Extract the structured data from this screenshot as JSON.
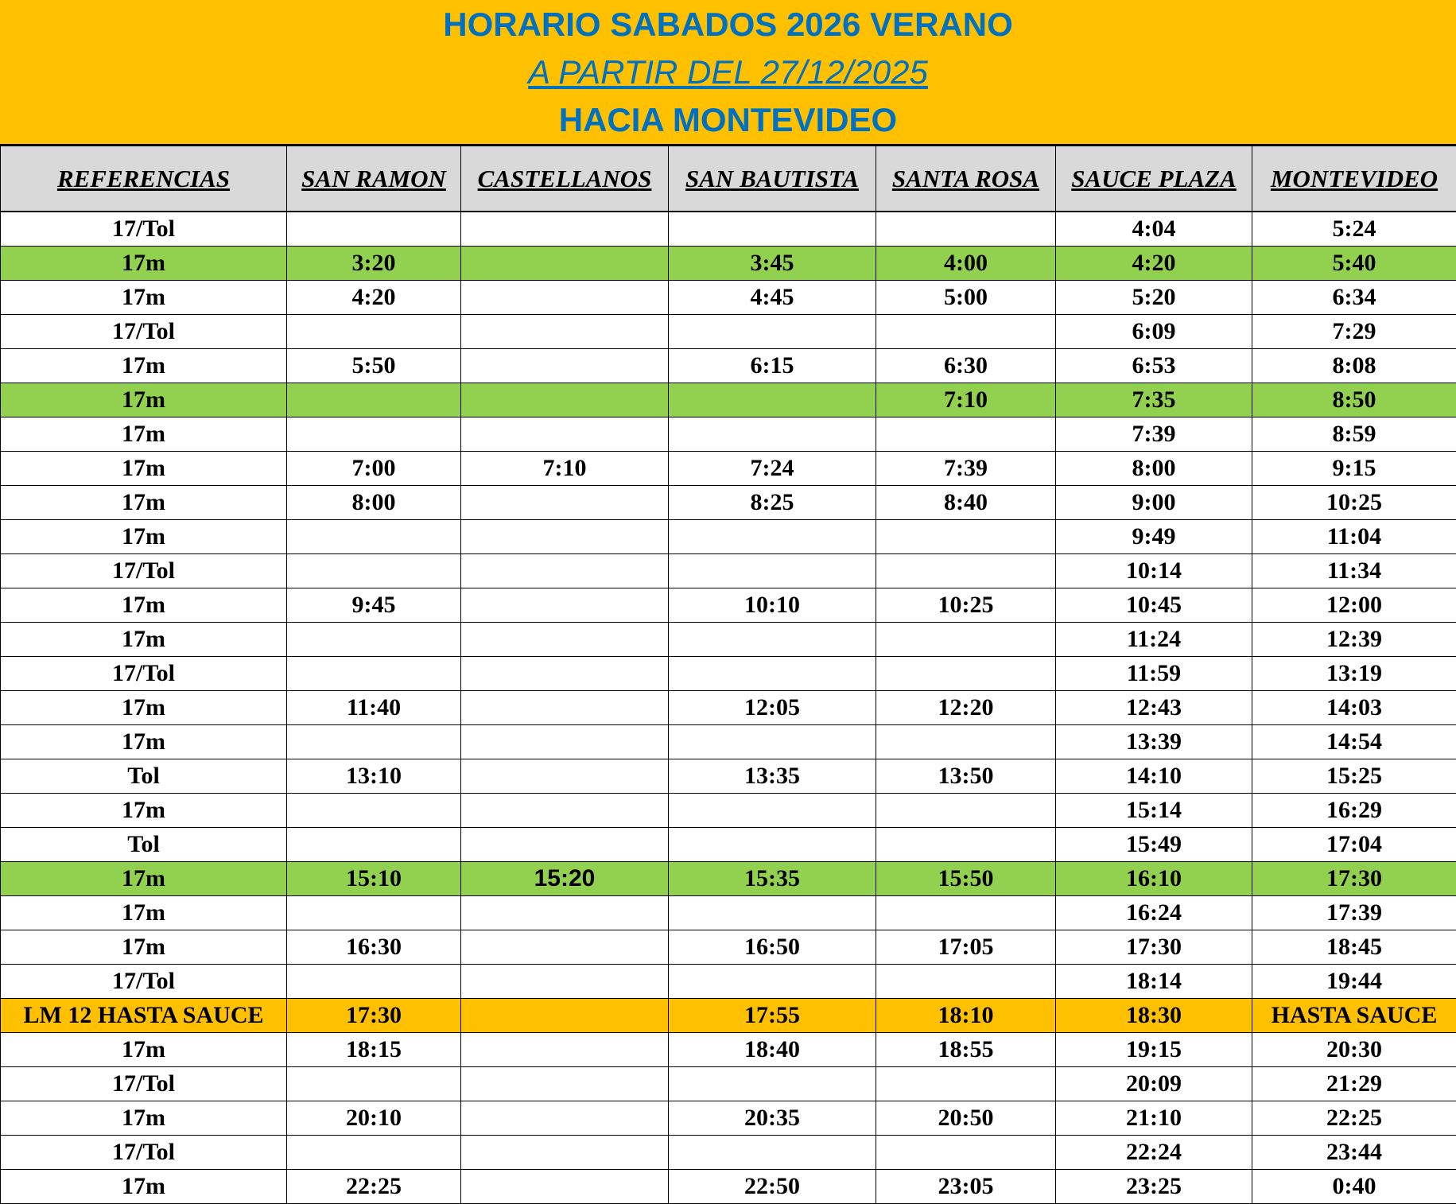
{
  "title": "HORARIO SABADOS 2026 VERANO",
  "subtitle": "A PARTIR DEL 27/12/2025",
  "direction": "HACIA MONTEVIDEO",
  "colors": {
    "banner": "#FFC000",
    "title_text": "#0070C0",
    "header_bg": "#D9D9D9",
    "highlight_green": "#92D050",
    "highlight_orange": "#FFC000"
  },
  "columns": [
    "REFERENCIAS",
    "SAN RAMON",
    "CASTELLANOS",
    "SAN BAUTISTA",
    "SANTA ROSA",
    "SAUCE PLAZA",
    "MONTEVIDEO"
  ],
  "rows": [
    {
      "highlight": "",
      "cells": [
        "17/Tol",
        "",
        "",
        "",
        "",
        "4:04",
        "5:24"
      ]
    },
    {
      "highlight": "green",
      "cells": [
        "17m",
        "3:20",
        "",
        "3:45",
        "4:00",
        "4:20",
        "5:40"
      ]
    },
    {
      "highlight": "",
      "cells": [
        "17m",
        "4:20",
        "",
        "4:45",
        "5:00",
        "5:20",
        "6:34"
      ]
    },
    {
      "highlight": "",
      "cells": [
        "17/Tol",
        "",
        "",
        "",
        "",
        "6:09",
        "7:29"
      ]
    },
    {
      "highlight": "",
      "cells": [
        "17m",
        "5:50",
        "",
        "6:15",
        "6:30",
        "6:53",
        "8:08"
      ]
    },
    {
      "highlight": "green",
      "cells": [
        "17m",
        "",
        "",
        "",
        "7:10",
        "7:35",
        "8:50"
      ]
    },
    {
      "highlight": "",
      "cells": [
        "17m",
        "",
        "",
        "",
        "",
        "7:39",
        "8:59"
      ]
    },
    {
      "highlight": "",
      "cells": [
        "17m",
        "7:00",
        "7:10",
        "7:24",
        "7:39",
        "8:00",
        "9:15"
      ]
    },
    {
      "highlight": "",
      "cells": [
        "17m",
        "8:00",
        "",
        "8:25",
        "8:40",
        "9:00",
        "10:25"
      ]
    },
    {
      "highlight": "",
      "cells": [
        "17m",
        "",
        "",
        "",
        "",
        "9:49",
        "11:04"
      ]
    },
    {
      "highlight": "",
      "cells": [
        "17/Tol",
        "",
        "",
        "",
        "",
        "10:14",
        "11:34"
      ]
    },
    {
      "highlight": "",
      "cells": [
        "17m",
        "9:45",
        "",
        "10:10",
        "10:25",
        "10:45",
        "12:00"
      ]
    },
    {
      "highlight": "",
      "cells": [
        "17m",
        "",
        "",
        "",
        "",
        "11:24",
        "12:39"
      ]
    },
    {
      "highlight": "",
      "cells": [
        "17/Tol",
        "",
        "",
        "",
        "",
        "11:59",
        "13:19"
      ]
    },
    {
      "highlight": "",
      "cells": [
        "17m",
        "11:40",
        "",
        "12:05",
        "12:20",
        "12:43",
        "14:03"
      ]
    },
    {
      "highlight": "",
      "cells": [
        "17m",
        "",
        "",
        "",
        "",
        "13:39",
        "14:54"
      ]
    },
    {
      "highlight": "",
      "cells": [
        "Tol",
        "13:10",
        "",
        "13:35",
        "13:50",
        "14:10",
        "15:25"
      ]
    },
    {
      "highlight": "",
      "cells": [
        "17m",
        "",
        "",
        "",
        "",
        "15:14",
        "16:29"
      ]
    },
    {
      "highlight": "",
      "cells": [
        "Tol",
        "",
        "",
        "",
        "",
        "15:49",
        "17:04"
      ]
    },
    {
      "highlight": "green",
      "cells": [
        "17m",
        "15:10",
        "15:20",
        "15:35",
        "15:50",
        "16:10",
        "17:30"
      ]
    },
    {
      "highlight": "",
      "cells": [
        "17m",
        "",
        "",
        "",
        "",
        "16:24",
        "17:39"
      ]
    },
    {
      "highlight": "",
      "cells": [
        "17m",
        "16:30",
        "",
        "16:50",
        "17:05",
        "17:30",
        "18:45"
      ]
    },
    {
      "highlight": "",
      "cells": [
        "17/Tol",
        "",
        "",
        "",
        "",
        "18:14",
        "19:44"
      ]
    },
    {
      "highlight": "orange",
      "cells": [
        "LM 12 HASTA SAUCE",
        "17:30",
        "",
        "17:55",
        "18:10",
        "18:30",
        "HASTA SAUCE"
      ]
    },
    {
      "highlight": "",
      "cells": [
        "17m",
        "18:15",
        "",
        "18:40",
        "18:55",
        "19:15",
        "20:30"
      ]
    },
    {
      "highlight": "",
      "cells": [
        "17/Tol",
        "",
        "",
        "",
        "",
        "20:09",
        "21:29"
      ]
    },
    {
      "highlight": "",
      "cells": [
        "17m",
        "20:10",
        "",
        "20:35",
        "20:50",
        "21:10",
        "22:25"
      ]
    },
    {
      "highlight": "",
      "cells": [
        "17/Tol",
        "",
        "",
        "",
        "",
        "22:24",
        "23:44"
      ]
    },
    {
      "highlight": "",
      "cells": [
        "17m",
        "22:25",
        "",
        "22:50",
        "23:05",
        "23:25",
        "0:40"
      ]
    }
  ]
}
